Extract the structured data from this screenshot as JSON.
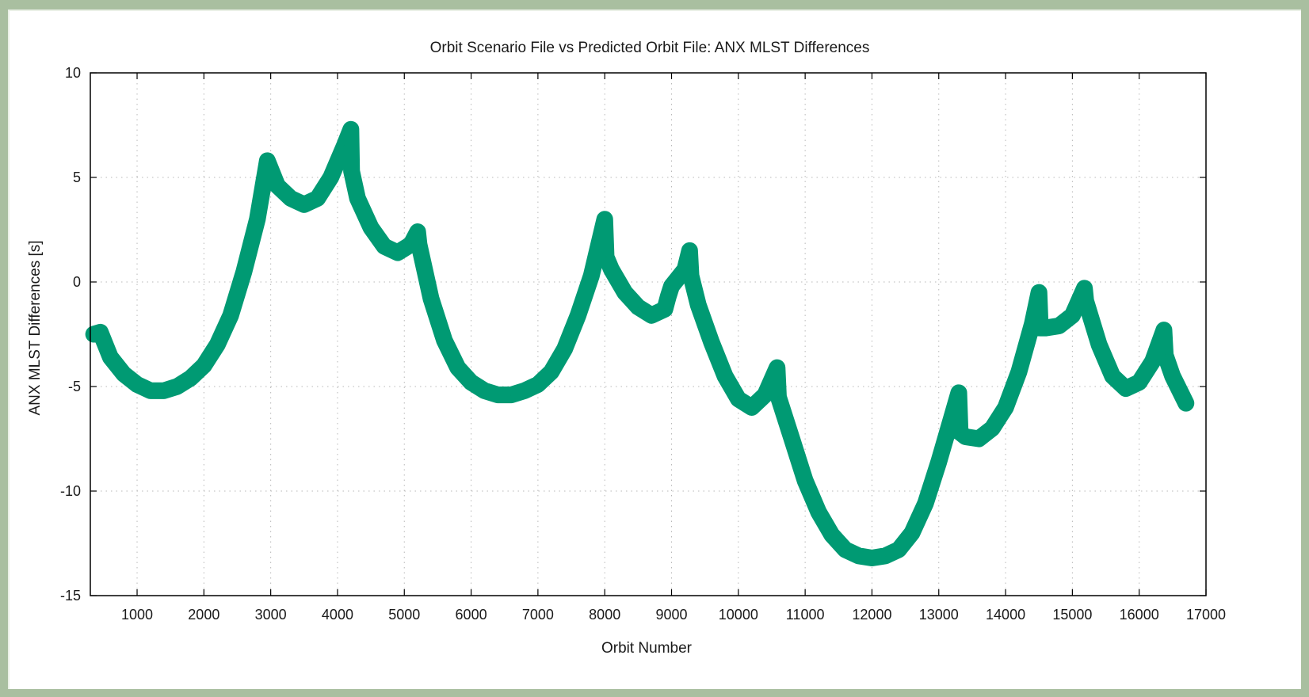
{
  "chart_data": {
    "type": "line",
    "title": "Orbit Scenario File vs Predicted Orbit File: ANX MLST Differences",
    "xlabel": "Orbit Number",
    "ylabel": "ANX MLST Differences [s]",
    "xlim": [
      300,
      17000
    ],
    "ylim": [
      -15,
      10
    ],
    "xticks": [
      1000,
      2000,
      3000,
      4000,
      5000,
      6000,
      7000,
      8000,
      9000,
      10000,
      11000,
      12000,
      13000,
      14000,
      15000,
      16000,
      17000
    ],
    "yticks": [
      -15,
      -10,
      -5,
      0,
      5,
      10
    ],
    "grid": true,
    "line_color": "#009a73",
    "band_width": 0.8,
    "series": [
      {
        "x": [
          350,
          450,
          600,
          800,
          1000,
          1200,
          1400,
          1600,
          1800,
          2000,
          2200,
          2400,
          2600,
          2800,
          2950,
          3100,
          3300,
          3500,
          3700,
          3900,
          4100,
          4200,
          4210,
          4300,
          4500,
          4700,
          4900,
          5100,
          5200,
          5220,
          5400,
          5600,
          5800,
          6000,
          6200,
          6400,
          6600,
          6800,
          7000,
          7200,
          7400,
          7600,
          7800,
          8000,
          8020,
          8100,
          8300,
          8500,
          8700,
          8900,
          8950,
          9000,
          9200,
          9270,
          9290,
          9400,
          9600,
          9800,
          10000,
          10200,
          10400,
          10580,
          10600,
          10800,
          11000,
          11200,
          11400,
          11600,
          11800,
          12000,
          12200,
          12400,
          12600,
          12800,
          13000,
          13200,
          13300,
          13320,
          13400,
          13600,
          13800,
          14000,
          14200,
          14400,
          14500,
          14520,
          14600,
          14800,
          15000,
          15180,
          15200,
          15400,
          15600,
          15800,
          16000,
          16200,
          16370,
          16390,
          16500,
          16700
        ],
        "y": [
          -2.5,
          -2.4,
          -3.6,
          -4.4,
          -4.9,
          -5.2,
          -5.2,
          -5.0,
          -4.6,
          -4.0,
          -3.0,
          -1.6,
          0.5,
          3.0,
          5.8,
          4.6,
          4.0,
          3.7,
          4.0,
          5.0,
          6.5,
          7.3,
          5.3,
          4.0,
          2.6,
          1.7,
          1.4,
          1.8,
          2.4,
          1.8,
          -0.8,
          -2.8,
          -4.1,
          -4.8,
          -5.2,
          -5.4,
          -5.4,
          -5.2,
          -4.9,
          -4.3,
          -3.2,
          -1.6,
          0.3,
          3.0,
          1.2,
          0.6,
          -0.5,
          -1.2,
          -1.6,
          -1.3,
          -0.7,
          -0.2,
          0.6,
          1.5,
          0.3,
          -1.1,
          -2.9,
          -4.5,
          -5.6,
          -6.0,
          -5.4,
          -4.1,
          -5.5,
          -7.5,
          -9.5,
          -11.0,
          -12.1,
          -12.8,
          -13.1,
          -13.2,
          -13.1,
          -12.8,
          -12.0,
          -10.6,
          -8.6,
          -6.4,
          -5.3,
          -7.2,
          -7.4,
          -7.5,
          -7.0,
          -6.0,
          -4.3,
          -2.0,
          -0.5,
          -2.2,
          -2.2,
          -2.1,
          -1.6,
          -0.3,
          -0.9,
          -3.0,
          -4.5,
          -5.1,
          -4.8,
          -3.8,
          -2.3,
          -3.5,
          -4.5,
          -5.8
        ]
      }
    ]
  }
}
